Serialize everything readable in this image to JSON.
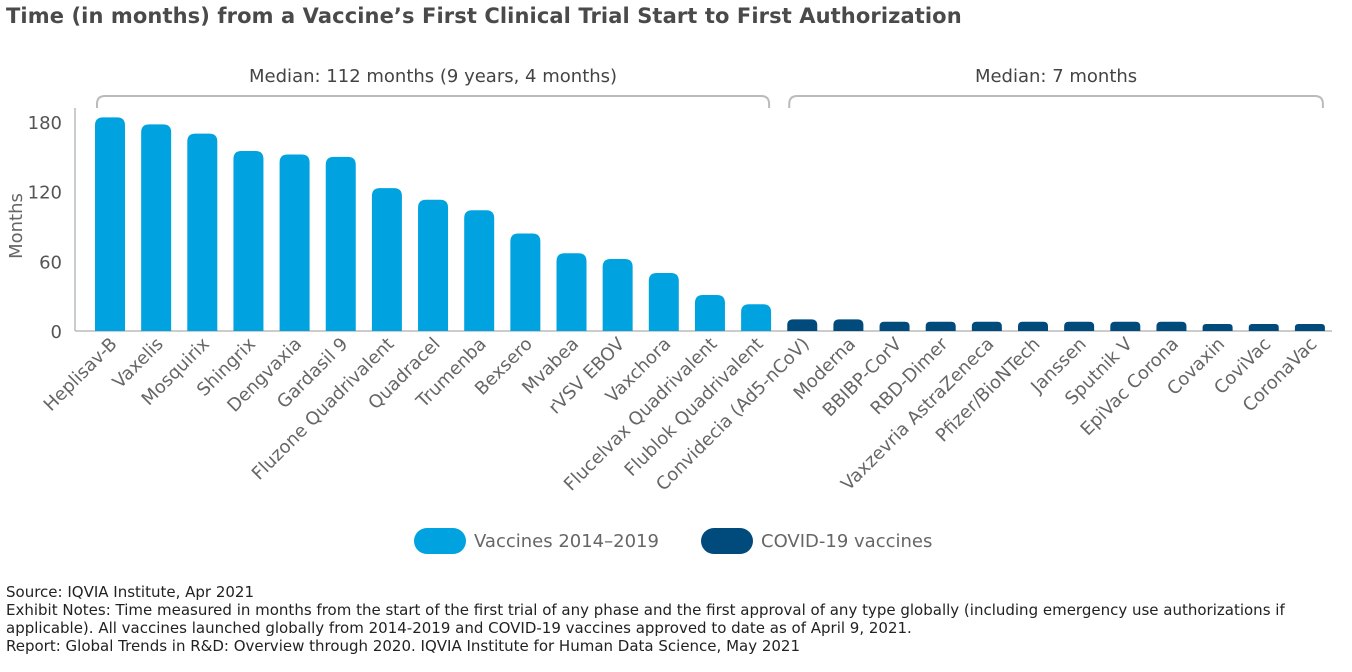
{
  "title": "Time (in months) from a Vaccine’s First Clinical Trial Start to First Authorization",
  "chart_data": {
    "type": "bar",
    "ylabel": "Months",
    "ylim": [
      0,
      190
    ],
    "yticks": [
      0,
      60,
      120,
      180
    ],
    "categories": [
      "Heplisav-B",
      "Vaxelis",
      "Mosquirix",
      "Shingrix",
      "Dengvaxia",
      "Gardasil 9",
      "Fluzone Quadrivalent",
      "Quadracel",
      "Trumenba",
      "Bexsero",
      "Mvabea",
      "rVSV EBOV",
      "Vaxchora",
      "Flucelvax Quadrivalent",
      "Flublok Quadrivalent",
      "Convidecia (Ad5-nCoV)",
      "Moderna",
      "BBIBP-CorV",
      "RBD-Dimer",
      "Vaxzevria AstraZeneca",
      "Pfizer/BioNTech",
      "Janssen",
      "Sputnik V",
      "EpiVac Corona",
      "Covaxin",
      "CoviVac",
      "CoronaVac"
    ],
    "values": [
      184,
      178,
      170,
      155,
      152,
      150,
      123,
      113,
      104,
      84,
      67,
      62,
      50,
      31,
      23,
      10,
      10,
      8,
      8,
      8,
      8,
      8,
      8,
      8,
      6,
      6,
      6
    ],
    "series": [
      {
        "name": "Vaccines 2014–2019",
        "color": "#00a3e0",
        "range": [
          0,
          14
        ]
      },
      {
        "name": "COVID-19 vaccines",
        "color": "#004a7c",
        "range": [
          15,
          26
        ]
      }
    ],
    "annotations": [
      {
        "text": "Median: 112 months (9 years, 4 months)",
        "range": [
          0,
          14
        ]
      },
      {
        "text": "Median: 7 months",
        "range": [
          15,
          26
        ]
      }
    ],
    "legend_position": "bottom-center",
    "grid": false
  },
  "legend": [
    {
      "label": "Vaccines 2014–2019",
      "color": "#00a3e0"
    },
    {
      "label": "COVID-19 vaccines",
      "color": "#004a7c"
    }
  ],
  "notes": {
    "source": "Source: IQVIA Institute, Apr 2021",
    "exhibit": "Exhibit Notes: Time measured in months from the start of the first trial of any phase and the first approval of any type globally (including emergency use authorizations if applicable). All vaccines launched globally from 2014-2019 and COVID-19 vaccines approved to date as of April 9, 2021.",
    "report": "Report: Global Trends in R&D: Overview through 2020. IQVIA Institute for Human Data Science, May 2021"
  }
}
